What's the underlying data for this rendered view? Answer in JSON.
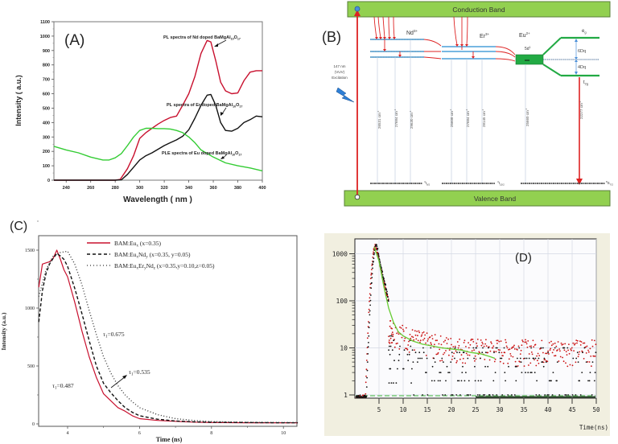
{
  "chart_data": [
    {
      "panel": "(A)",
      "type": "line",
      "xlabel": "Wavelength ( nm )",
      "ylabel": "Intensity ( a.u.)",
      "xlim": [
        230,
        400
      ],
      "ylim": [
        0,
        1100
      ],
      "xticks": [
        "240",
        "260",
        "280",
        "300",
        "320",
        "340",
        "360",
        "380",
        "400"
      ],
      "yticks": [
        "0",
        "100",
        "200",
        "300",
        "400",
        "500",
        "600",
        "700",
        "800",
        "900",
        "1000",
        "1100"
      ],
      "annotations": [
        {
          "text": "PL spectra of Nd doped BaMgAl",
          "sub1": "10",
          "mid": "O",
          "sub2": "17"
        },
        {
          "text": "PL spectra of Er doped BaMgAl",
          "sub1": "10",
          "mid": "O",
          "sub2": "17"
        },
        {
          "text": "PLE spectra of Eu doped BaMgAl",
          "sub1": "10",
          "mid": "O",
          "sub2": "17"
        }
      ],
      "series": [
        {
          "name": "PL Nd",
          "color": "#c8102e",
          "x": [
            230,
            250,
            270,
            280,
            284,
            290,
            295,
            300,
            305,
            310,
            315,
            320,
            325,
            330,
            335,
            340,
            345,
            350,
            355,
            358,
            362,
            366,
            370,
            375,
            380,
            385,
            390,
            395,
            400
          ],
          "y": [
            0,
            0,
            0,
            0,
            5,
            80,
            170,
            290,
            330,
            360,
            390,
            415,
            435,
            445,
            520,
            600,
            720,
            880,
            970,
            960,
            830,
            680,
            620,
            600,
            605,
            690,
            750,
            760,
            760
          ]
        },
        {
          "name": "PL Er",
          "color": "#111111",
          "x": [
            230,
            250,
            270,
            280,
            285,
            290,
            295,
            300,
            305,
            310,
            315,
            320,
            325,
            330,
            335,
            340,
            345,
            350,
            355,
            358,
            362,
            366,
            370,
            375,
            380,
            385,
            390,
            395,
            400
          ],
          "y": [
            0,
            0,
            0,
            0,
            2,
            40,
            90,
            140,
            170,
            190,
            215,
            240,
            260,
            280,
            305,
            350,
            430,
            520,
            590,
            595,
            520,
            400,
            345,
            340,
            360,
            400,
            420,
            445,
            440
          ]
        },
        {
          "name": "PLE Eu",
          "color": "#33cc33",
          "x": [
            230,
            240,
            250,
            260,
            270,
            275,
            280,
            285,
            290,
            295,
            300,
            305,
            310,
            315,
            320,
            325,
            330,
            335,
            340,
            345,
            350,
            360,
            370,
            380,
            390,
            400
          ],
          "y": [
            235,
            210,
            190,
            160,
            140,
            140,
            155,
            185,
            240,
            300,
            345,
            360,
            360,
            358,
            358,
            355,
            345,
            330,
            300,
            260,
            210,
            160,
            120,
            100,
            85,
            65
          ]
        }
      ]
    },
    {
      "panel": "(B)",
      "type": "diagram",
      "conduction_band": "Conduction Band",
      "valence_band": "Valence Band",
      "excitation": [
        "147 nm",
        "(VUV)",
        "Excitation"
      ],
      "ions": [
        "Nd",
        "Er",
        "Eu"
      ],
      "ion_charges": [
        "3+",
        "3+",
        "2+"
      ],
      "eu_level": "5d",
      "eu_level_sup": "1",
      "eg": "e",
      "eg_sub": "g",
      "t2g": "t",
      "t2g_sub": "2g",
      "splits": [
        "6Dq",
        "4Dq"
      ],
      "ground_states": [
        {
          "sup": "4",
          "main": "I",
          "sub": "9/2"
        },
        {
          "sup": "4",
          "main": "I",
          "sub": "15/2"
        },
        {
          "sup": "8",
          "main": "S",
          "sub": "7/2"
        }
      ],
      "wavenumbers": [
        "26531 cm",
        "27684 cm",
        "29630 cm",
        "25608 cm",
        "27684 cm",
        "28145 cm",
        "25660 cm",
        "22277 cm"
      ],
      "wavenumber_sup": "-1"
    },
    {
      "panel": "(C)",
      "type": "line",
      "xlabel": "Time (ns)",
      "ylabel": "Intensity (a.u.)",
      "xlim": [
        3.2,
        10.4
      ],
      "ylim": [
        0,
        1600
      ],
      "xticks": [
        "4",
        "6",
        "8",
        "10"
      ],
      "yticks": [
        "0",
        "500",
        "1000",
        "1500"
      ],
      "legend": "top-right",
      "series": [
        {
          "name": "BAM:Eu",
          "sub": "x",
          "rest": " (x=0.35)",
          "color": "#c8102e",
          "style": "solid",
          "tau": "=0.487",
          "x": [
            3.2,
            3.3,
            3.4,
            3.5,
            3.6,
            3.7,
            3.8,
            3.9,
            4.0,
            4.2,
            4.4,
            4.6,
            4.8,
            5.0,
            5.2,
            5.4,
            5.6,
            5.8,
            6.0,
            6.5,
            7.0,
            7.5,
            8,
            9,
            10,
            10.4
          ],
          "y": [
            1180,
            1380,
            1390,
            1400,
            1430,
            1500,
            1420,
            1330,
            1270,
            1050,
            800,
            580,
            400,
            260,
            200,
            140,
            110,
            70,
            45,
            30,
            22,
            15,
            12,
            10,
            10,
            10
          ]
        },
        {
          "name": "BAM:Eu",
          "sub": "x",
          "mid": "Nd",
          "sub2": "y",
          "rest": " (x=0.35, y=0.05)",
          "color": "#111111",
          "style": "dashed",
          "tau": "=0.535",
          "x": [
            3.2,
            3.3,
            3.4,
            3.5,
            3.6,
            3.7,
            3.8,
            3.9,
            4.0,
            4.2,
            4.4,
            4.6,
            4.8,
            5.0,
            5.2,
            5.4,
            5.6,
            5.8,
            6.0,
            6.5,
            7.0,
            7.5,
            8,
            9,
            10,
            10.4
          ],
          "y": [
            880,
            1150,
            1300,
            1380,
            1430,
            1470,
            1450,
            1420,
            1360,
            1170,
            950,
            720,
            500,
            350,
            270,
            200,
            140,
            100,
            70,
            40,
            25,
            18,
            14,
            12,
            10,
            10
          ]
        },
        {
          "name": "BAM:Eu",
          "sub": "x",
          "mid": "Er",
          "sub2": "y",
          "mid2": "Nd",
          "sub3": "z",
          "rest": " (x=0.35,y=0.10,z=0.05)",
          "color": "#333333",
          "style": "dotted",
          "tau": "=0.675",
          "x": [
            3.2,
            3.4,
            3.6,
            3.8,
            4.0,
            4.2,
            4.4,
            4.6,
            4.8,
            5.0,
            5.2,
            5.4,
            5.6,
            5.8,
            6.0,
            6.5,
            7.0,
            7.5,
            8,
            9,
            10,
            10.4
          ],
          "y": [
            1100,
            1330,
            1450,
            1480,
            1490,
            1380,
            1200,
            980,
            770,
            580,
            440,
            330,
            250,
            190,
            140,
            80,
            45,
            30,
            20,
            14,
            12,
            12
          ]
        }
      ],
      "tau_symbol": "τ",
      "tau_sub": "1"
    },
    {
      "panel": "(D)",
      "type": "scatter",
      "xlabel": "Time(ns)",
      "yscale": "log",
      "xlim": [
        0,
        50
      ],
      "ylim": [
        0.9,
        1500
      ],
      "xticks": [
        "5",
        "10",
        "15",
        "20",
        "25",
        "30",
        "35",
        "40",
        "45",
        "50"
      ],
      "yticks": [
        "1",
        "10",
        "100",
        "1000"
      ],
      "grid": true,
      "series": [
        {
          "name": "sample red",
          "color": "#cc1111",
          "peak_time": 4.3,
          "peak_value": 1500,
          "tail_level": 9
        },
        {
          "name": "sample black",
          "color": "#111111",
          "peak_time": 4.5,
          "peak_value": 1500,
          "tail_level": 3
        },
        {
          "name": "fit",
          "color": "#66cc33",
          "x": [
            4,
            5,
            6,
            7,
            8,
            9,
            10,
            12,
            14,
            16,
            18,
            20,
            22,
            24,
            26,
            28,
            29
          ],
          "y": [
            1400,
            700,
            200,
            70,
            35,
            22,
            18,
            14,
            12,
            11,
            10,
            9.5,
            9,
            8,
            7.5,
            6.5,
            6
          ]
        }
      ],
      "baseline_color": "#33aa33"
    }
  ]
}
